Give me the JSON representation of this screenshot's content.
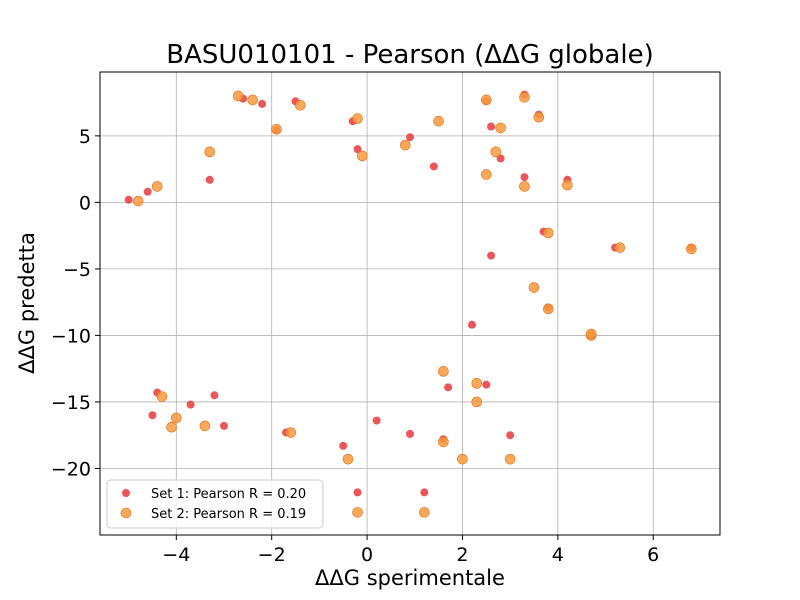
{
  "chart_data": {
    "type": "scatter",
    "title": "BASU010101 - Pearson (ΔΔG globale)",
    "xlabel": "ΔΔG sperimentale",
    "ylabel": "ΔΔG predetta",
    "xlim": [
      -5.6,
      7.4
    ],
    "ylim": [
      -25,
      9.8
    ],
    "xticks": [
      -4,
      -2,
      0,
      2,
      4,
      6
    ],
    "yticks": [
      -20,
      -15,
      -10,
      -5,
      0,
      5
    ],
    "grid": true,
    "legend_position": "lower-left",
    "series": [
      {
        "name": "Set 1: Pearson R = 0.20",
        "color": "#e8383d",
        "points": [
          [
            -2.6,
            7.8
          ],
          [
            -2.2,
            7.4
          ],
          [
            -1.5,
            7.6
          ],
          [
            -0.3,
            6.1
          ],
          [
            3.3,
            8.1
          ],
          [
            2.5,
            7.6
          ],
          [
            3.6,
            6.6
          ],
          [
            4.2,
            1.7
          ],
          [
            -4.4,
            -14.3
          ],
          [
            -3.7,
            -15.2
          ],
          [
            -3.2,
            -14.5
          ],
          [
            -1.7,
            -17.3
          ],
          [
            -0.5,
            -18.3
          ],
          [
            0.2,
            -16.4
          ],
          [
            1.2,
            -21.8
          ],
          [
            -0.2,
            -21.8
          ],
          [
            0.9,
            -17.4
          ],
          [
            1.6,
            -17.8
          ],
          [
            3.0,
            -17.5
          ],
          [
            4.7,
            -10.0
          ],
          [
            6.8,
            -3.4
          ],
          [
            5.2,
            -3.4
          ],
          [
            3.7,
            -2.2
          ],
          [
            3.3,
            1.9
          ],
          [
            2.6,
            5.7
          ],
          [
            2.8,
            3.3
          ],
          [
            -3.3,
            1.7
          ],
          [
            -4.6,
            0.8
          ],
          [
            -5.0,
            0.2
          ],
          [
            -3.0,
            -16.8
          ],
          [
            -4.5,
            -16.0
          ],
          [
            2.5,
            -13.7
          ],
          [
            2.2,
            -9.2
          ],
          [
            1.7,
            -13.9
          ],
          [
            3.8,
            -7.9
          ],
          [
            2.6,
            -4.0
          ],
          [
            1.4,
            2.7
          ],
          [
            -0.2,
            4.0
          ],
          [
            0.9,
            4.9
          ],
          [
            -1.9,
            5.4
          ]
        ]
      },
      {
        "name": "Set 2: Pearson R = 0.19",
        "color": "#f79a3c",
        "points": [
          [
            -2.7,
            8.0
          ],
          [
            -2.4,
            7.7
          ],
          [
            -1.4,
            7.3
          ],
          [
            -0.2,
            6.3
          ],
          [
            3.3,
            7.9
          ],
          [
            2.5,
            7.7
          ],
          [
            3.6,
            6.4
          ],
          [
            4.2,
            1.3
          ],
          [
            -4.3,
            -14.6
          ],
          [
            -4.1,
            -16.9
          ],
          [
            -4.0,
            -16.2
          ],
          [
            -3.4,
            -16.8
          ],
          [
            -1.6,
            -17.3
          ],
          [
            -0.4,
            -19.3
          ],
          [
            1.2,
            -23.3
          ],
          [
            -0.2,
            -23.3
          ],
          [
            1.6,
            -18.0
          ],
          [
            2.0,
            -19.3
          ],
          [
            3.0,
            -19.3
          ],
          [
            4.7,
            -10.0
          ],
          [
            6.8,
            -3.5
          ],
          [
            5.3,
            -3.4
          ],
          [
            3.8,
            -2.3
          ],
          [
            3.3,
            1.2
          ],
          [
            2.8,
            5.6
          ],
          [
            2.7,
            3.8
          ],
          [
            -3.3,
            3.8
          ],
          [
            -4.4,
            1.2
          ],
          [
            -4.8,
            0.1
          ],
          [
            2.3,
            -13.6
          ],
          [
            2.3,
            -15.0
          ],
          [
            1.6,
            -12.7
          ],
          [
            3.5,
            -6.4
          ],
          [
            3.8,
            -8.0
          ],
          [
            1.5,
            6.1
          ],
          [
            -0.1,
            3.5
          ],
          [
            -1.9,
            5.5
          ],
          [
            2.5,
            2.1
          ],
          [
            0.8,
            4.3
          ],
          [
            4.7,
            -9.9
          ]
        ]
      }
    ]
  }
}
